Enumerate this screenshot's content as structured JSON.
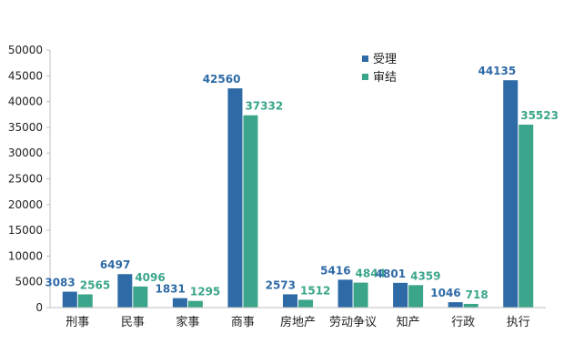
{
  "chart_data": {
    "type": "bar",
    "categories": [
      "刑事",
      "民事",
      "家事",
      "商事",
      "房地产",
      "劳动争议",
      "知产",
      "行政",
      "执行"
    ],
    "series": [
      {
        "name": "受理",
        "values": [
          3083,
          6497,
          1831,
          42560,
          2573,
          5416,
          4801,
          1046,
          44135
        ],
        "color": "#2e6aa6"
      },
      {
        "name": "审结",
        "values": [
          2565,
          4096,
          1295,
          37332,
          1512,
          4844,
          4359,
          718,
          35523
        ],
        "color": "#3aa58a"
      }
    ],
    "yticks": [
      "0",
      "5000",
      "10000",
      "15000",
      "20000",
      "25000",
      "30000",
      "35000",
      "40000",
      "45000",
      "50000"
    ],
    "ylim": [
      0,
      50000
    ],
    "grid": false,
    "legend": "top-center",
    "data_labels": true
  }
}
